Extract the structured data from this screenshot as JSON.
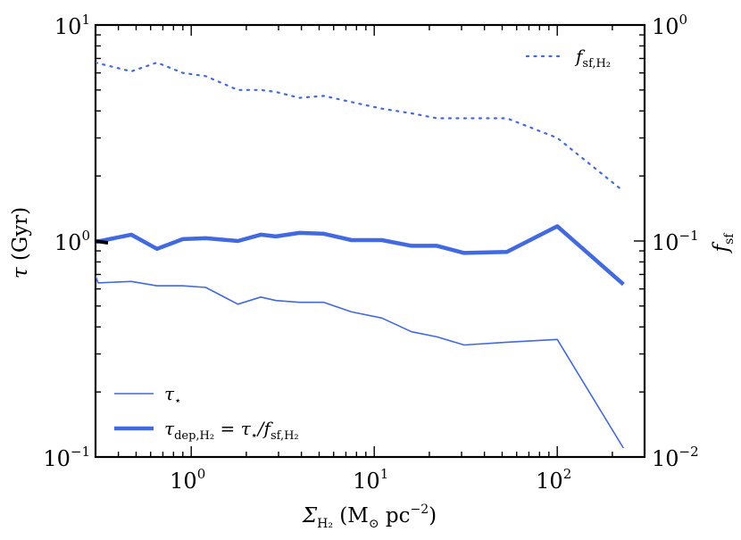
{
  "chart_data": {
    "type": "line",
    "xscale": "log",
    "yscale": "log",
    "xlim": [
      0.3,
      300
    ],
    "ylim_left": [
      0.1,
      10
    ],
    "ylim_right": [
      0.01,
      1
    ],
    "xlabel": "Σ_H2 (M⊙ pc⁻²)",
    "ylabel_left": "τ (Gyr)",
    "ylabel_right": "f_sf",
    "x_ticks": [
      {
        "value": 1,
        "base": "10",
        "exp": "0"
      },
      {
        "value": 10,
        "base": "10",
        "exp": "1"
      },
      {
        "value": 100,
        "base": "10",
        "exp": "2"
      }
    ],
    "y_left_ticks": [
      {
        "value": 0.1,
        "base": "10",
        "exp": "−1"
      },
      {
        "value": 1,
        "base": "10",
        "exp": "0"
      },
      {
        "value": 10,
        "base": "10",
        "exp": "1"
      }
    ],
    "y_right_ticks": [
      {
        "value": 0.01,
        "base": "10",
        "exp": "−2"
      },
      {
        "value": 0.1,
        "base": "10",
        "exp": "−1"
      },
      {
        "value": 1,
        "base": "10",
        "exp": "0"
      }
    ],
    "series": [
      {
        "name": "τ⋆",
        "axis": "left",
        "style": "thin",
        "color": "#4169E1",
        "x": [
          0.3,
          0.31,
          0.47,
          0.65,
          0.9,
          1.2,
          1.8,
          2.4,
          2.9,
          3.9,
          5.3,
          7.5,
          11,
          16,
          22,
          31,
          53,
          100,
          230
        ],
        "y": [
          0.69,
          0.64,
          0.65,
          0.62,
          0.62,
          0.61,
          0.51,
          0.55,
          0.53,
          0.52,
          0.52,
          0.47,
          0.44,
          0.38,
          0.36,
          0.33,
          0.34,
          0.35,
          0.11
        ]
      },
      {
        "name": "τ_dep,H2 = τ⋆ / f_sf,H2",
        "axis": "left",
        "style": "thick",
        "color": "#4169E1",
        "x": [
          0.3,
          0.47,
          0.65,
          0.9,
          1.2,
          1.8,
          2.4,
          2.9,
          3.9,
          5.3,
          7.5,
          11,
          16,
          22,
          31,
          53,
          100,
          230
        ],
        "y": [
          0.99,
          1.07,
          0.92,
          1.02,
          1.03,
          1.0,
          1.07,
          1.05,
          1.09,
          1.08,
          1.01,
          1.01,
          0.95,
          0.95,
          0.88,
          0.89,
          1.17,
          0.63
        ]
      },
      {
        "name": "f_sf,H2",
        "axis": "right",
        "style": "dotted",
        "color": "#4169E1",
        "x": [
          0.3,
          0.47,
          0.65,
          0.9,
          1.2,
          1.8,
          2.4,
          2.9,
          3.9,
          5.3,
          7.5,
          11,
          16,
          22,
          31,
          53,
          100,
          230
        ],
        "y": [
          0.67,
          0.61,
          0.67,
          0.6,
          0.58,
          0.5,
          0.5,
          0.49,
          0.46,
          0.47,
          0.44,
          0.41,
          0.39,
          0.37,
          0.37,
          0.37,
          0.3,
          0.17
        ]
      }
    ],
    "legend_upper_right": {
      "text": "f_sf,H2"
    },
    "legend_lower_left": [
      {
        "text": "τ⋆"
      },
      {
        "text": "τ_dep,H2 = τ⋆ / f_sf,H2"
      }
    ]
  }
}
